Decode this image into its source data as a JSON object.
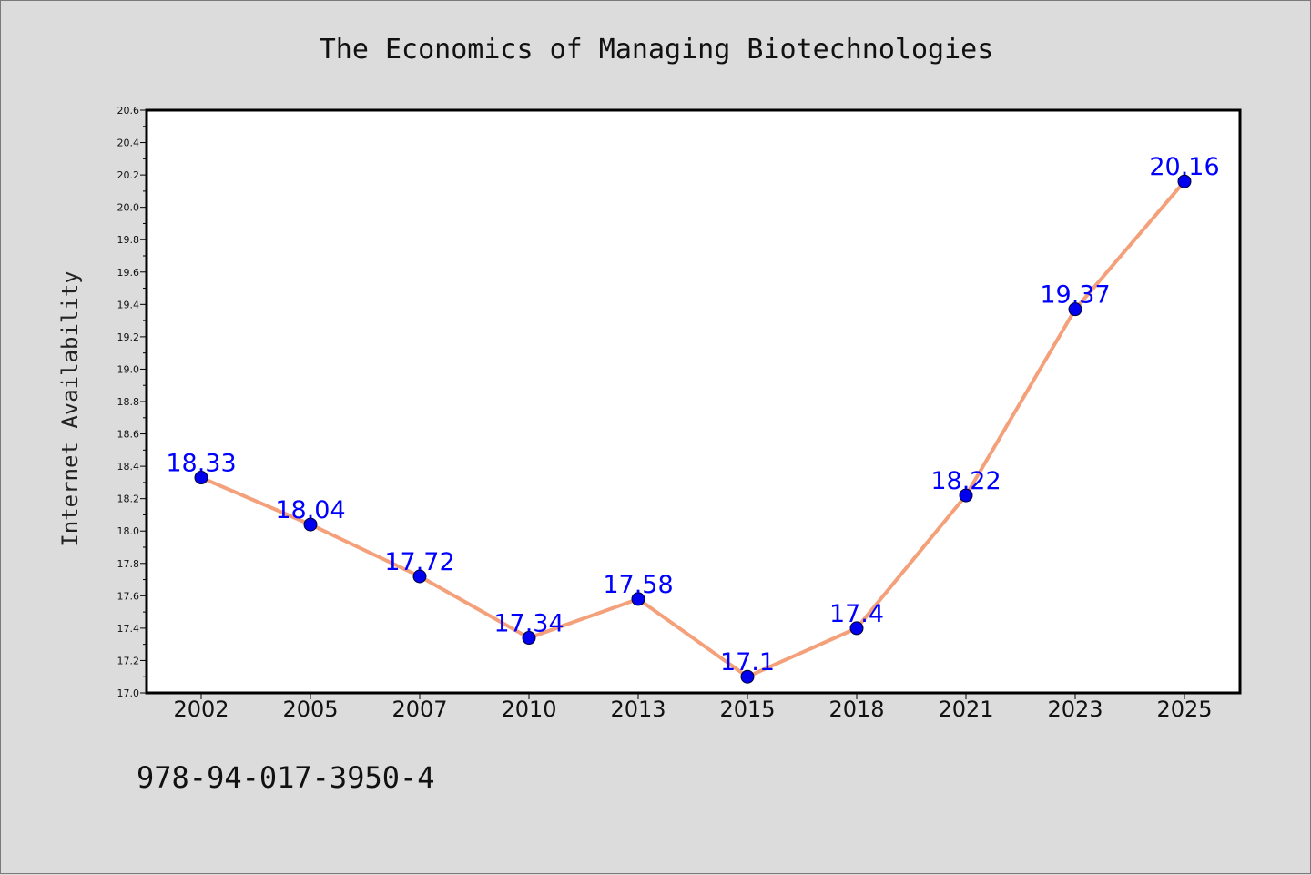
{
  "chart_data": {
    "type": "line",
    "title": "The Economics of Managing Biotechnologies",
    "xlabel": "",
    "ylabel": "Internet Availability",
    "categories": [
      "2002",
      "2005",
      "2007",
      "2010",
      "2013",
      "2015",
      "2018",
      "2021",
      "2023",
      "2025"
    ],
    "values": [
      18.33,
      18.04,
      17.72,
      17.34,
      17.58,
      17.1,
      17.4,
      18.22,
      19.37,
      20.16
    ],
    "data_labels": [
      "18.33",
      "18.04",
      "17.72",
      "17.34",
      "17.58",
      "17.1",
      "17.4",
      "18.22",
      "19.37",
      "20.16"
    ],
    "ylim": [
      17.0,
      20.6
    ],
    "yticks": [
      "17.0",
      "17.2",
      "17.4",
      "17.6",
      "17.8",
      "18.0",
      "18.2",
      "18.4",
      "18.6",
      "18.8",
      "19.0",
      "19.2",
      "19.4",
      "19.6",
      "19.8",
      "20.0",
      "20.2",
      "20.4",
      "20.6"
    ],
    "grid": false,
    "colors": {
      "line": "#f4a07a",
      "marker": "#0000ee",
      "data_label": "#0000ff",
      "background": "#dcdcdc",
      "plot_background": "#ffffff"
    }
  },
  "footer": {
    "isbn": "978-94-017-3950-4"
  }
}
